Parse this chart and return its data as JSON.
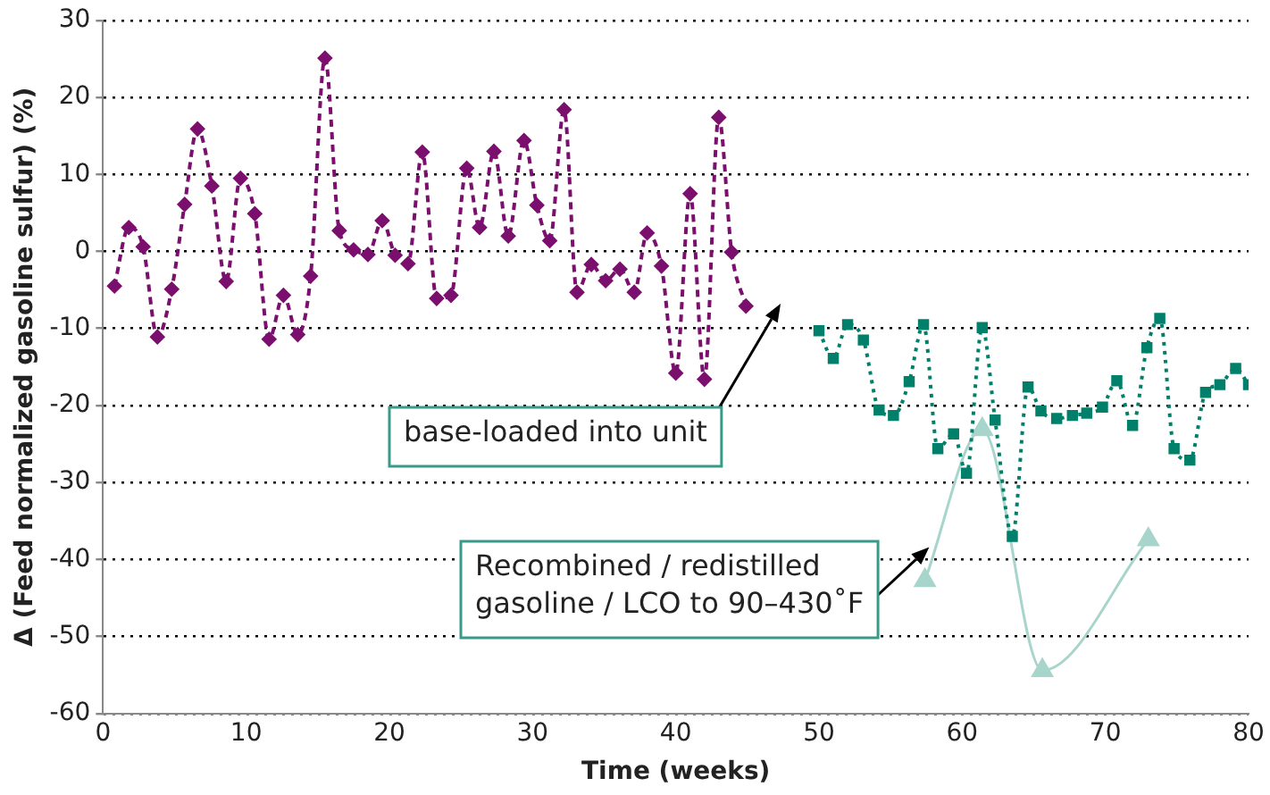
{
  "chart_data": {
    "type": "line",
    "xlabel": "Time (weeks)",
    "ylabel": "Δ (Feed normalized gasoline sulfur) (%)",
    "xlim": [
      0,
      80
    ],
    "xticks": [
      0,
      10,
      20,
      30,
      40,
      50,
      60,
      70,
      80
    ],
    "ylim": [
      -60,
      30
    ],
    "yticks": [
      -60,
      -50,
      -40,
      -30,
      -20,
      -10,
      0,
      10,
      20,
      30
    ],
    "grid": "y",
    "legend": false,
    "series": [
      {
        "color": "#7b0f6e",
        "marker": "diamond",
        "line_style": "dashed",
        "x": [
          0.8,
          1.8,
          2.8,
          3.8,
          4.8,
          5.7,
          6.6,
          7.6,
          8.6,
          9.6,
          10.6,
          11.6,
          12.6,
          13.6,
          14.5,
          15.5,
          16.5,
          17.5,
          18.5,
          19.5,
          20.4,
          21.3,
          22.3,
          23.3,
          24.3,
          25.4,
          26.3,
          27.3,
          28.3,
          29.4,
          30.3,
          31.2,
          32.2,
          33.1,
          34.1,
          35.1,
          36.1,
          37.1,
          38.0,
          39.0,
          40.0,
          41.0,
          42.0,
          43.0,
          43.9,
          44.9
        ],
        "values": [
          -4.5,
          3.1,
          0.6,
          -11.1,
          -4.9,
          6.1,
          15.9,
          8.5,
          -3.9,
          9.5,
          4.9,
          -11.4,
          -5.7,
          -10.8,
          -3.2,
          25.1,
          2.7,
          0.2,
          -0.4,
          4.0,
          -0.5,
          -1.6,
          12.9,
          -6.1,
          -5.7,
          10.8,
          3.1,
          13.0,
          2.0,
          14.4,
          6.0,
          1.4,
          18.4,
          -5.3,
          -1.7,
          -3.8,
          -2.3,
          -5.3,
          2.4,
          -1.9,
          -15.8,
          7.5,
          -16.6,
          17.4,
          -0.1,
          -7.1
        ]
      },
      {
        "color": "#00806a",
        "marker": "square",
        "line_style": "dotted",
        "x": [
          50.0,
          51.0,
          52.0,
          53.1,
          54.2,
          55.2,
          56.3,
          57.3,
          58.3,
          59.4,
          60.3,
          61.4,
          62.3,
          63.5,
          64.6,
          65.5,
          66.6,
          67.7,
          68.7,
          69.8,
          70.8,
          71.9,
          72.9,
          73.8,
          74.8,
          75.9,
          77.0,
          78.0,
          79.1,
          80.0
        ],
        "values": [
          -10.3,
          -13.9,
          -9.5,
          -11.5,
          -20.6,
          -21.3,
          -16.9,
          -9.5,
          -25.6,
          -23.7,
          -28.8,
          -9.9,
          -21.9,
          -37.0,
          -17.6,
          -20.7,
          -21.7,
          -21.3,
          -21.0,
          -20.2,
          -16.8,
          -22.6,
          -12.5,
          -8.7,
          -25.6,
          -27.1,
          -18.3,
          -17.3,
          -15.2,
          -17.3
        ]
      },
      {
        "color": "#a8d5cb",
        "marker": "triangle",
        "line_style": "solid",
        "x": [
          57.4,
          61.4,
          65.6,
          73.0
        ],
        "values": [
          -42.7,
          -23.1,
          -54.4,
          -37.4
        ]
      }
    ],
    "annotations": [
      "base-loaded into unit",
      {
        "text": "Recombined / redistilled\ngasoline / LCO to 90–430˚F",
        "x": 57.7,
        "y": -38.4
      }
    ]
  }
}
